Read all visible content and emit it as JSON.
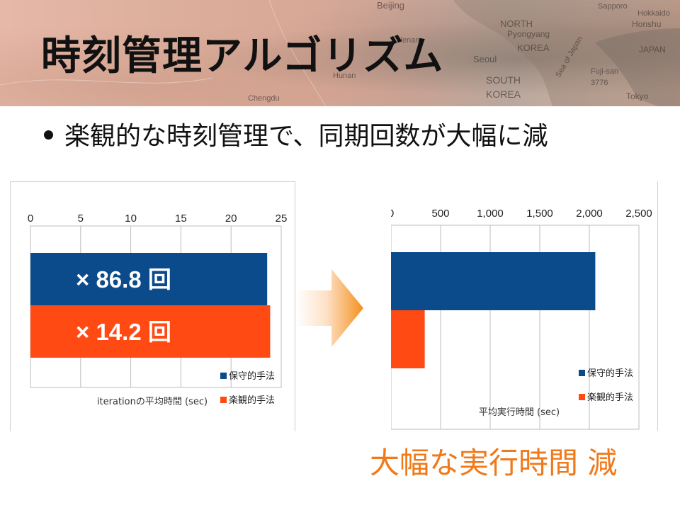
{
  "slide": {
    "title": "時刻管理アルゴリズム",
    "bullet": "楽観的な時刻管理で、同期回数が大幅に減",
    "conclusion": "大幅な実行時間 減",
    "colors": {
      "conservative": "#0b4a8b",
      "optimistic": "#ff4a14",
      "conclusion_text": "#f07a1a"
    },
    "map_labels": [
      "Beijing",
      "NORTH",
      "Pyongyang",
      "KOREA",
      "Seoul",
      "SOUTH",
      "KOREA",
      "Sea of Japan",
      "Honshu",
      "JAPAN",
      "Tokyo",
      "Sapporo",
      "Hokkaido",
      "Fuji-san",
      "3776",
      "Chengdu",
      "Hunan",
      "Henan"
    ]
  },
  "chart_data": [
    {
      "type": "bar",
      "orientation": "horizontal",
      "categories": [
        ""
      ],
      "series": [
        {
          "name": "保守的手法",
          "values": [
            23.6
          ],
          "label": "× 86.8 回"
        },
        {
          "name": "楽観的手法",
          "values": [
            23.9
          ],
          "label": "× 14.2 回"
        }
      ],
      "ticks": [
        "0",
        "5",
        "10",
        "15",
        "20",
        "25"
      ],
      "xlim": [
        0,
        25
      ],
      "xlabel": "iterationの平均時間 (sec)",
      "grid": true,
      "legend": "bottom-right"
    },
    {
      "type": "bar",
      "orientation": "horizontal",
      "categories": [
        ""
      ],
      "series": [
        {
          "name": "保守的手法",
          "values": [
            2060
          ]
        },
        {
          "name": "楽観的手法",
          "values": [
            340
          ]
        }
      ],
      "ticks": [
        "0",
        "500",
        "1,000",
        "1,500",
        "2,000",
        "2,500"
      ],
      "xlim": [
        0,
        2500
      ],
      "xlabel": "平均実行時間 (sec)",
      "grid": true,
      "legend": "bottom-right"
    }
  ]
}
